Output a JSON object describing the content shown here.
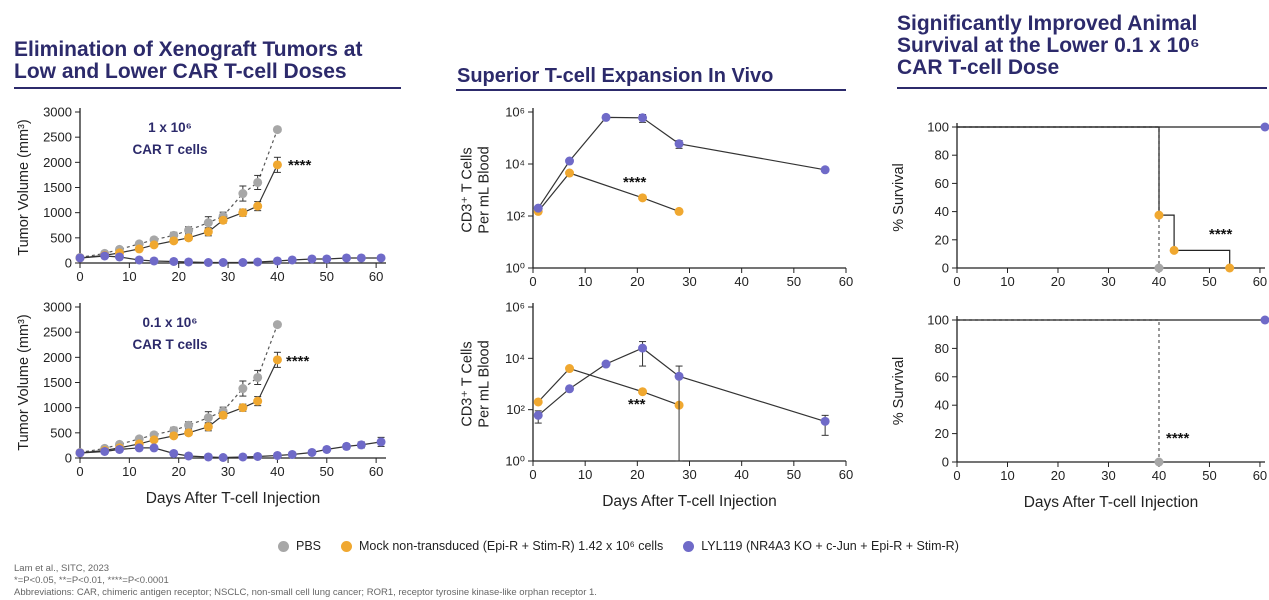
{
  "titles": {
    "panel1": [
      "Elimination of Xenograft Tumors at",
      "Low and Lower CAR T-cell Doses"
    ],
    "panel2": [
      "Superior T-cell Expansion In Vivo"
    ],
    "panel3": [
      "Significantly Improved Animal",
      "Survival at the Lower 0.1 x 10⁶",
      "CAR T-cell Dose"
    ]
  },
  "colors": {
    "pbs": "#a7a7a7",
    "mock": "#f0a830",
    "lyl": "#6f6ac8",
    "title": "#2c2a6b"
  },
  "legend": [
    {
      "label": "PBS",
      "color": "#a7a7a7"
    },
    {
      "label": "Mock non-transduced (Epi-R + Stim-R) 1.42 x 10⁶ cells",
      "color": "#f0a830"
    },
    {
      "label": "LYL119 (NR4A3 KO + c-Jun + Epi-R + Stim-R)",
      "color": "#6f6ac8"
    }
  ],
  "footnotes": {
    "citation": "Lam et al., SITC, 2023",
    "significance": "*=P<0.05, **=P<0.01, ****=P<0.0001",
    "abbreviations": "Abbreviations: CAR, chimeric antigen receptor; NSCLC, non-small cell lung cancer; ROR1, receptor tyrosine kinase-like orphan receptor 1."
  },
  "chart_data": [
    {
      "type": "line",
      "annotation": "1 x 10⁶\nCAR T cells",
      "xlabel": "",
      "ylabel": "Tumor Volume (mm³)",
      "xlim": [
        0,
        62
      ],
      "ylim": [
        0,
        3000
      ],
      "xticks": [
        0,
        10,
        20,
        30,
        40,
        50,
        60
      ],
      "yticks": [
        0,
        500,
        1000,
        1500,
        2000,
        2500,
        3000
      ],
      "significance": "****",
      "series": [
        {
          "name": "PBS",
          "color": "#a7a7a7",
          "dashed": true,
          "x": [
            0,
            5,
            8,
            12,
            15,
            19,
            22,
            26,
            29,
            33,
            36,
            40
          ],
          "y": [
            110,
            190,
            270,
            380,
            460,
            550,
            650,
            800,
            930,
            1380,
            1600,
            2650
          ],
          "err": [
            0,
            20,
            30,
            40,
            40,
            60,
            70,
            120,
            80,
            150,
            140,
            0
          ]
        },
        {
          "name": "Mock",
          "color": "#f0a830",
          "dashed": false,
          "x": [
            0,
            5,
            8,
            12,
            15,
            19,
            22,
            26,
            29,
            33,
            36,
            40
          ],
          "y": [
            100,
            150,
            200,
            280,
            360,
            440,
            500,
            620,
            850,
            1000,
            1130,
            1950
          ],
          "err": [
            0,
            20,
            20,
            30,
            30,
            40,
            50,
            80,
            60,
            70,
            90,
            150
          ]
        },
        {
          "name": "LYL119",
          "color": "#6f6ac8",
          "dashed": false,
          "x": [
            0,
            5,
            8,
            12,
            15,
            19,
            22,
            26,
            29,
            33,
            36,
            40,
            43,
            47,
            50,
            54,
            57,
            61
          ],
          "y": [
            100,
            140,
            120,
            60,
            40,
            30,
            20,
            10,
            10,
            10,
            20,
            40,
            60,
            80,
            80,
            100,
            100,
            100
          ],
          "err": []
        }
      ]
    },
    {
      "type": "line",
      "annotation": "0.1 x 10⁶\nCAR T cells",
      "xlabel": "Days After T-cell Injection",
      "ylabel": "Tumor Volume (mm³)",
      "xlim": [
        0,
        62
      ],
      "ylim": [
        0,
        3000
      ],
      "xticks": [
        0,
        10,
        20,
        30,
        40,
        50,
        60
      ],
      "yticks": [
        0,
        500,
        1000,
        1500,
        2000,
        2500,
        3000
      ],
      "significance": "****",
      "series": [
        {
          "name": "PBS",
          "color": "#a7a7a7",
          "dashed": true,
          "x": [
            0,
            5,
            8,
            12,
            15,
            19,
            22,
            26,
            29,
            33,
            36,
            40
          ],
          "y": [
            110,
            190,
            270,
            380,
            460,
            550,
            650,
            800,
            930,
            1380,
            1600,
            2650
          ],
          "err": [
            0,
            20,
            30,
            40,
            40,
            60,
            70,
            120,
            80,
            150,
            140,
            0
          ]
        },
        {
          "name": "Mock",
          "color": "#f0a830",
          "dashed": false,
          "x": [
            0,
            5,
            8,
            12,
            15,
            19,
            22,
            26,
            29,
            33,
            36,
            40
          ],
          "y": [
            100,
            150,
            200,
            280,
            360,
            440,
            500,
            620,
            850,
            1000,
            1130,
            1950
          ],
          "err": [
            0,
            20,
            20,
            30,
            30,
            40,
            50,
            80,
            60,
            70,
            90,
            150
          ]
        },
        {
          "name": "LYL119",
          "color": "#6f6ac8",
          "dashed": false,
          "x": [
            0,
            5,
            8,
            12,
            15,
            19,
            22,
            26,
            29,
            33,
            36,
            40,
            43,
            47,
            50,
            54,
            57,
            61
          ],
          "y": [
            100,
            130,
            170,
            200,
            200,
            90,
            40,
            20,
            10,
            20,
            30,
            50,
            70,
            110,
            170,
            230,
            260,
            320
          ],
          "err": [
            0,
            20,
            30,
            40,
            40,
            20,
            10,
            10,
            10,
            10,
            10,
            20,
            20,
            30,
            40,
            50,
            60,
            90
          ]
        }
      ]
    },
    {
      "type": "line",
      "xlabel": "",
      "ylabel": "CD3⁺ T Cells\nPer mL Blood",
      "yscale": "log",
      "xlim": [
        0,
        60
      ],
      "ylim": [
        1,
        1000000
      ],
      "xticks": [
        0,
        10,
        20,
        30,
        40,
        50,
        60
      ],
      "yticks": [
        1,
        100,
        10000,
        1000000
      ],
      "ytick_labels": [
        "10⁰",
        "10²",
        "10⁴",
        "10⁶"
      ],
      "significance": "****",
      "series": [
        {
          "name": "Mock",
          "color": "#f0a830",
          "x": [
            1,
            7,
            21,
            28
          ],
          "y": [
            150,
            4500,
            500,
            150
          ],
          "err": []
        },
        {
          "name": "LYL119",
          "color": "#6f6ac8",
          "x": [
            1,
            7,
            14,
            21,
            28,
            56
          ],
          "y": [
            200,
            13000,
            620000,
            600000,
            60000,
            6000
          ],
          "err": [
            0,
            0,
            0,
            200000,
            20000,
            0
          ]
        }
      ]
    },
    {
      "type": "line",
      "xlabel": "Days After T-cell Injection",
      "ylabel": "CD3⁺ T Cells\nPer mL Blood",
      "yscale": "log",
      "xlim": [
        0,
        60
      ],
      "ylim": [
        1,
        1000000
      ],
      "xticks": [
        0,
        10,
        20,
        30,
        40,
        50,
        60
      ],
      "yticks": [
        1,
        100,
        10000,
        1000000
      ],
      "ytick_labels": [
        "10⁰",
        "10²",
        "10⁴",
        "10⁶"
      ],
      "significance": "***",
      "series": [
        {
          "name": "Mock",
          "color": "#f0a830",
          "x": [
            1,
            7,
            21,
            28
          ],
          "y": [
            200,
            4000,
            500,
            150
          ],
          "err": []
        },
        {
          "name": "LYL119",
          "color": "#6f6ac8",
          "x": [
            1,
            7,
            14,
            21,
            28,
            56
          ],
          "y": [
            60,
            650,
            6000,
            25000,
            2000,
            35
          ],
          "err": [
            30,
            0,
            0,
            20000,
            3000,
            25
          ]
        }
      ]
    },
    {
      "type": "line",
      "step": true,
      "xlabel": "",
      "ylabel": "% Survival",
      "xlim": [
        0,
        61
      ],
      "ylim": [
        0,
        100
      ],
      "xticks": [
        0,
        10,
        20,
        30,
        40,
        50,
        60
      ],
      "yticks": [
        0,
        20,
        40,
        60,
        80,
        100
      ],
      "significance": "****",
      "series": [
        {
          "name": "PBS",
          "color": "#a7a7a7",
          "dashed": true,
          "x": [
            0,
            40,
            40
          ],
          "y": [
            100,
            100,
            0
          ],
          "markers": [
            [
              40,
              0
            ]
          ]
        },
        {
          "name": "Mock",
          "color": "#f0a830",
          "dashed": false,
          "x": [
            0,
            40,
            40,
            43,
            43,
            54,
            54
          ],
          "y": [
            100,
            100,
            37.5,
            37.5,
            12.5,
            12.5,
            0
          ],
          "markers": [
            [
              40,
              37.5
            ],
            [
              43,
              12.5
            ],
            [
              54,
              0
            ]
          ]
        },
        {
          "name": "LYL119",
          "color": "#6f6ac8",
          "dashed": false,
          "x": [
            0,
            61
          ],
          "y": [
            100,
            100
          ],
          "markers": [
            [
              61,
              100
            ]
          ]
        }
      ]
    },
    {
      "type": "line",
      "step": true,
      "xlabel": "Days After T-cell Injection",
      "ylabel": "% Survival",
      "xlim": [
        0,
        61
      ],
      "ylim": [
        0,
        100
      ],
      "xticks": [
        0,
        10,
        20,
        30,
        40,
        50,
        60
      ],
      "yticks": [
        0,
        20,
        40,
        60,
        80,
        100
      ],
      "significance": "****",
      "series": [
        {
          "name": "PBS",
          "color": "#a7a7a7",
          "dashed": true,
          "x": [
            0,
            40,
            40
          ],
          "y": [
            100,
            100,
            0
          ],
          "markers": [
            [
              40,
              0
            ]
          ]
        },
        {
          "name": "LYL119",
          "color": "#6f6ac8",
          "dashed": false,
          "x": [
            0,
            61
          ],
          "y": [
            100,
            100
          ],
          "markers": [
            [
              61,
              100
            ]
          ]
        }
      ]
    }
  ]
}
